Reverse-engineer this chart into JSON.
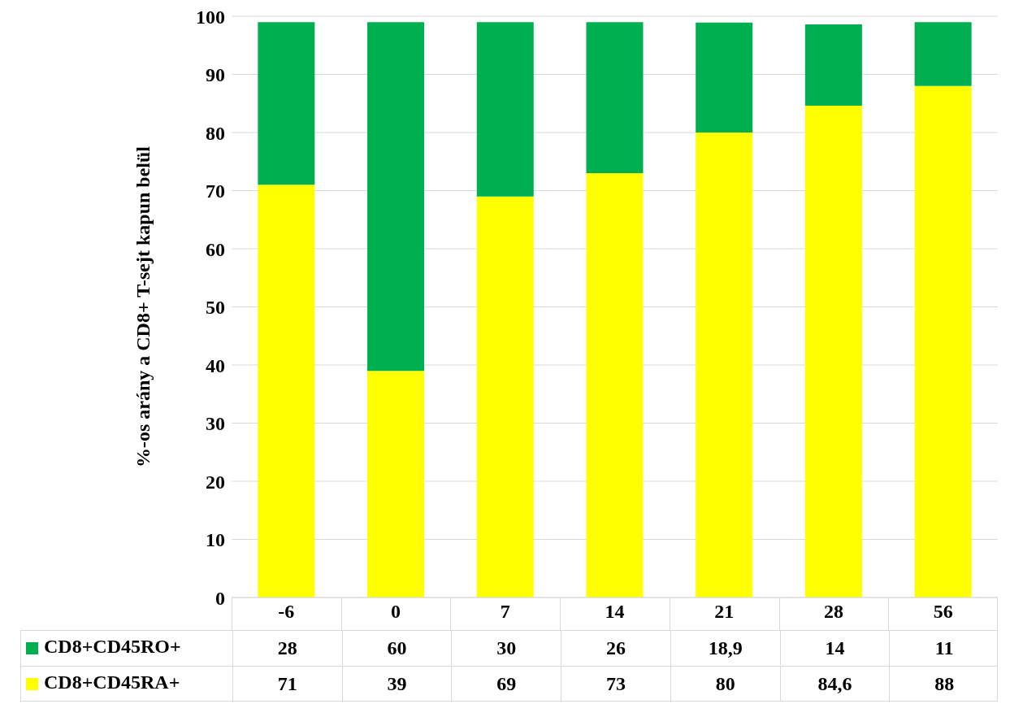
{
  "chart_data": {
    "type": "bar",
    "stacked": true,
    "ylabel": "%-os arány a CD8+ T-sejt kapun belül",
    "categories": [
      "-6",
      "0",
      "7",
      "14",
      "21",
      "28",
      "56"
    ],
    "series": [
      {
        "name": "CD8+CD45RA+",
        "color": "#ffff00",
        "values": [
          71,
          39,
          69,
          73,
          80,
          84.6,
          88
        ],
        "value_labels": [
          "71",
          "39",
          "69",
          "73",
          "80",
          "84,6",
          "88"
        ]
      },
      {
        "name": "CD8+CD45RO+",
        "color": "#00b050",
        "values": [
          28,
          60,
          30,
          26,
          18.9,
          14,
          11
        ],
        "value_labels": [
          "28",
          "60",
          "30",
          "26",
          "18,9",
          "14",
          "11"
        ]
      }
    ],
    "ylim": [
      0,
      100
    ],
    "yticks": [
      0,
      10,
      20,
      30,
      40,
      50,
      60,
      70,
      80,
      90,
      100
    ],
    "grid": "y",
    "legend": "bottom"
  }
}
